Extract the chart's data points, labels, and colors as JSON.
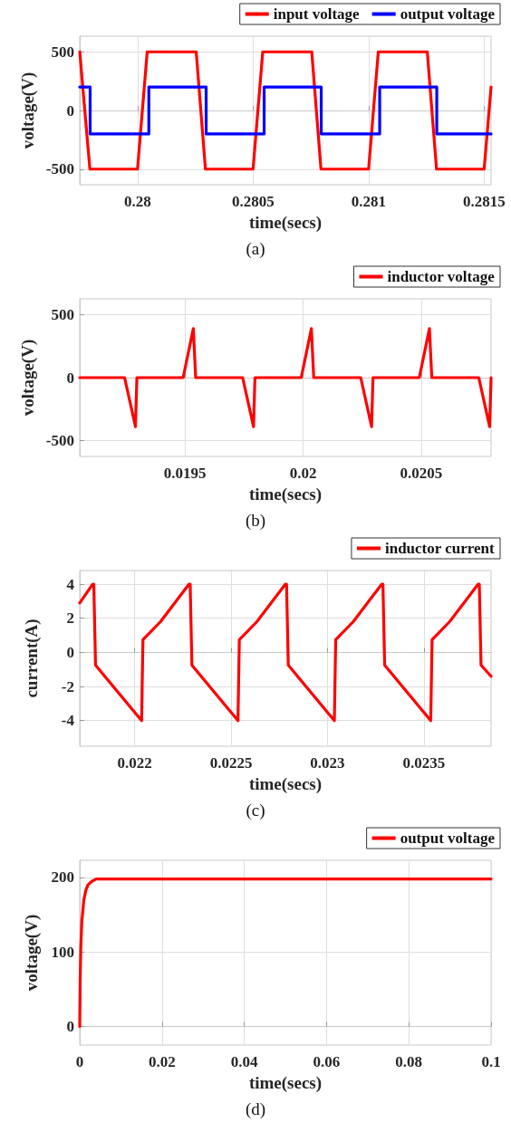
{
  "chart_data": [
    {
      "type": "line",
      "xlabel": "time(secs)",
      "ylabel": "voltage(V)",
      "annotations": [
        "(a)"
      ],
      "xlim": [
        0.27975,
        0.28153
      ],
      "ylim": [
        -633,
        633
      ],
      "xticks": [
        0.28,
        0.2805,
        0.281,
        0.2815
      ],
      "yticks": [
        -500,
        0,
        500
      ],
      "grid": true,
      "legend": "top right",
      "marker": "none",
      "line_style": "solid",
      "series": [
        {
          "name": "input voltage",
          "color": "#ff0000",
          "x": [
            0.27975,
            0.279794,
            0.28,
            0.280042,
            0.280254,
            0.280294,
            0.2805,
            0.280542,
            0.280754,
            0.280794,
            0.281,
            0.281042,
            0.281254,
            0.281294,
            0.2815,
            0.28153
          ],
          "values": [
            500,
            -500,
            -500,
            500,
            500,
            -500,
            -500,
            500,
            500,
            -500,
            -500,
            500,
            500,
            -500,
            -500,
            200
          ]
        },
        {
          "name": "output voltage",
          "color": "#0000ff",
          "x": [
            0.27975,
            0.279795,
            0.279795,
            0.280049,
            0.280049,
            0.280297,
            0.280297,
            0.280548,
            0.280548,
            0.280795,
            0.280795,
            0.281048,
            0.281048,
            0.281295,
            0.281295,
            0.28153
          ],
          "values": [
            200,
            200,
            -200,
            -200,
            200,
            200,
            -200,
            -200,
            200,
            200,
            -200,
            -200,
            200,
            200,
            -200,
            -200
          ]
        }
      ]
    },
    {
      "type": "line",
      "xlabel": "time(secs)",
      "ylabel": "voltage(V)",
      "annotations": [
        "(b)"
      ],
      "xlim": [
        0.019054,
        0.020796
      ],
      "ylim": [
        -627,
        627
      ],
      "xticks": [
        0.0195,
        0.02,
        0.0205
      ],
      "yticks": [
        -500,
        0,
        500
      ],
      "grid": true,
      "legend": "top right",
      "marker": "none",
      "line_style": "solid",
      "series": [
        {
          "name": "inductor voltage",
          "color": "#ff0000",
          "x": [
            0.019054,
            0.019244,
            0.01929,
            0.019296,
            0.019492,
            0.019535,
            0.019545,
            0.019744,
            0.01979,
            0.019796,
            0.019992,
            0.020035,
            0.020045,
            0.020244,
            0.02029,
            0.020296,
            0.020492,
            0.020535,
            0.020545,
            0.020744,
            0.02079,
            0.020796
          ],
          "values": [
            0,
            0,
            -390,
            0,
            0,
            390,
            0,
            0,
            -390,
            0,
            0,
            390,
            0,
            0,
            -390,
            0,
            0,
            390,
            0,
            0,
            -390,
            0
          ]
        }
      ]
    },
    {
      "type": "line",
      "xlabel": "time(secs)",
      "ylabel": "current(A)",
      "annotations": [
        "(c)"
      ],
      "xlim": [
        0.021715,
        0.023849
      ],
      "ylim": [
        -5.5,
        4.8
      ],
      "xticks": [
        0.022,
        0.0225,
        0.023,
        0.0235
      ],
      "yticks": [
        -4,
        -2,
        0,
        2,
        4
      ],
      "grid": true,
      "legend": "top right",
      "marker": "none",
      "line_style": "solid",
      "series": [
        {
          "name": "inductor current",
          "color": "#ff0000",
          "x": [
            0.021715,
            0.021782,
            0.021788,
            0.021797,
            0.022036,
            0.022043,
            0.022134,
            0.022282,
            0.022288,
            0.022297,
            0.022536,
            0.022543,
            0.022634,
            0.022782,
            0.022788,
            0.022797,
            0.023036,
            0.023043,
            0.023134,
            0.023282,
            0.023288,
            0.023297,
            0.023536,
            0.023543,
            0.023634,
            0.023782,
            0.023788,
            0.023797,
            0.023849
          ],
          "values": [
            2.9,
            4,
            4,
            -0.75,
            -4,
            0.75,
            1.8,
            4,
            4,
            -0.75,
            -4,
            0.75,
            1.8,
            4,
            4,
            -0.75,
            -4,
            0.75,
            1.8,
            4,
            4,
            -0.75,
            -4,
            0.75,
            1.8,
            4,
            4,
            -0.75,
            -1.4
          ]
        }
      ]
    },
    {
      "type": "line",
      "xlabel": "time(secs)",
      "ylabel": "voltage(V)",
      "annotations": [
        "(d)"
      ],
      "xlim": [
        0,
        0.1
      ],
      "ylim": [
        -25,
        223
      ],
      "xticks": [
        0,
        0.02,
        0.04,
        0.06,
        0.08,
        0.1
      ],
      "yticks": [
        0,
        100,
        200
      ],
      "grid": true,
      "legend": "top right",
      "marker": "none",
      "line_style": "solid",
      "series": [
        {
          "name": "output voltage",
          "color": "#ff0000",
          "x": [
            0,
            0.0001,
            0.00025,
            0.0005,
            0.001,
            0.0015,
            0.002,
            0.003,
            0.004,
            0.1
          ],
          "values": [
            0,
            60,
            105,
            140,
            170,
            183,
            190,
            195,
            198,
            198
          ]
        }
      ]
    }
  ]
}
